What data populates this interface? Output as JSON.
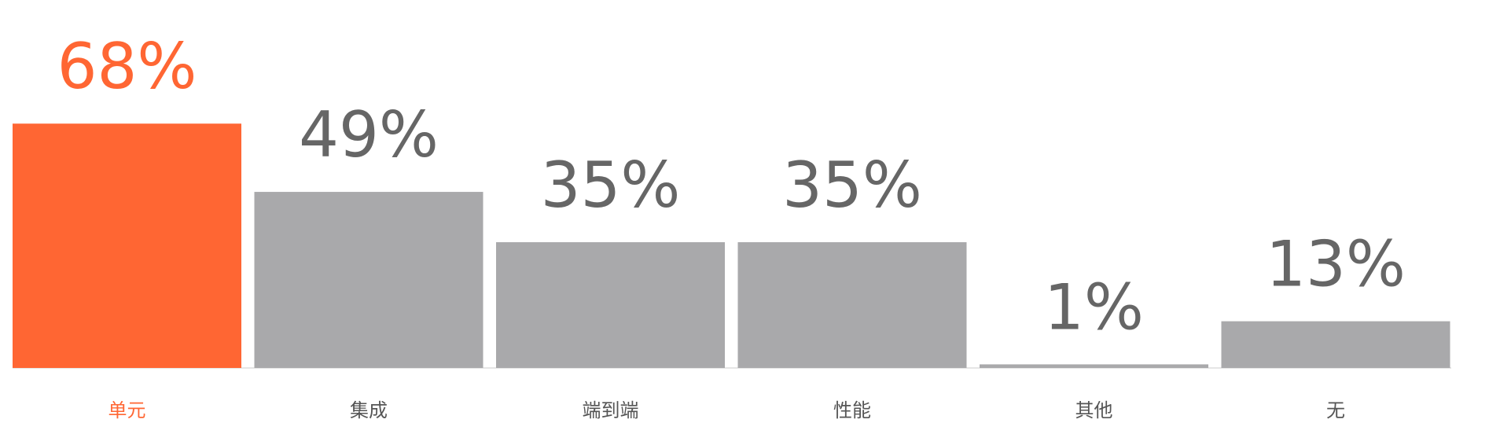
{
  "chart_data": {
    "type": "bar",
    "categories": [
      "单元",
      "集成",
      "端到端",
      "性能",
      "其他",
      "无"
    ],
    "values": [
      68,
      49,
      35,
      35,
      1,
      13
    ],
    "value_labels": [
      "68%",
      "49%",
      "35%",
      "35%",
      "1%",
      "13%"
    ],
    "title": "",
    "xlabel": "",
    "ylabel": "",
    "ylim": [
      0,
      100
    ],
    "grid": false,
    "legend": "none",
    "highlight_index": 0
  },
  "colors": {
    "highlight": "#ff6633",
    "bar": "#a9a9ab",
    "value_text": "#666666",
    "category_text": "#555555"
  }
}
